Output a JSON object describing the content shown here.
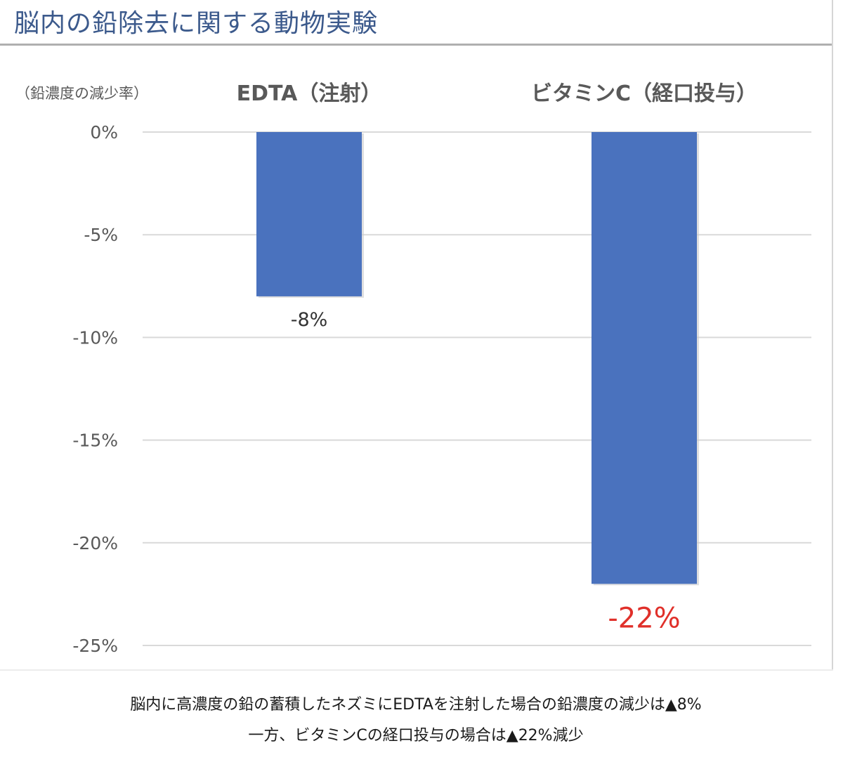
{
  "header": {
    "title": "脳内の鉛除去に関する動物実験"
  },
  "chart_data": {
    "type": "bar",
    "categories": [
      "EDTA（注射）",
      "ビタミンC（経口投与）"
    ],
    "values": [
      -8,
      -22
    ],
    "data_labels": [
      "-8%",
      "-22%"
    ],
    "ylabel": "（鉛濃度の減少率）",
    "ylim": [
      -25,
      0
    ],
    "yticks": [
      "0%",
      "-5%",
      "-10%",
      "-15%",
      "-20%",
      "-25%"
    ],
    "ytick_values": [
      0,
      -5,
      -10,
      -15,
      -20,
      -25
    ],
    "grid": true,
    "colors": {
      "bar": "#4a72be",
      "highlight_label": "#e0302a",
      "label": "#333333",
      "grid": "#d9d9d9",
      "axis_text": "#595959"
    }
  },
  "caption": {
    "line1": "脳内に高濃度の鉛の蓄積したネズミにEDTAを注射した場合の鉛濃度の減少は▲8%",
    "line2": "一方、ビタミンCの経口投与の場合は▲22%減少"
  }
}
